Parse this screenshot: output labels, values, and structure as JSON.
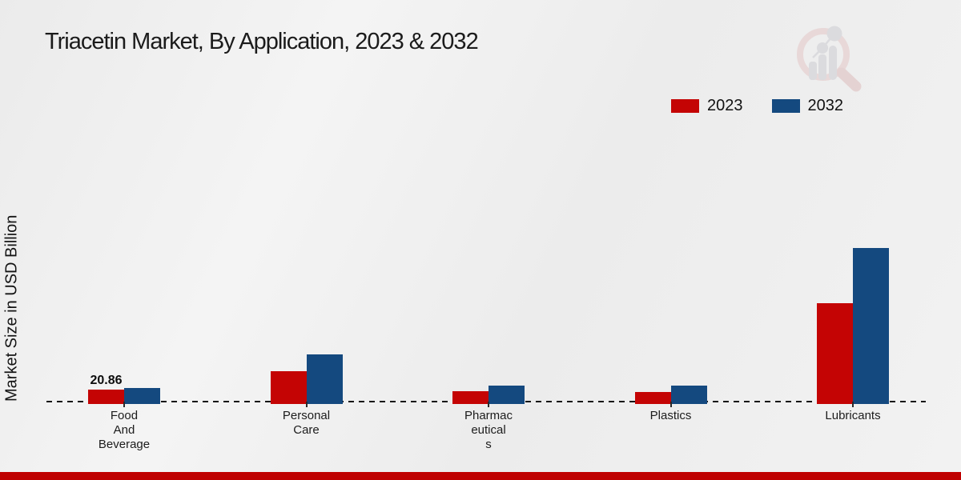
{
  "title": "Triacetin Market, By Application, 2023 & 2032",
  "y_axis_label": "Market Size in USD Billion",
  "legend": {
    "position": "top-right",
    "items": [
      {
        "label": "2023",
        "color": "#c40404"
      },
      {
        "label": "2032",
        "color": "#14497f"
      }
    ]
  },
  "icons": {
    "logo": "magnifier-growth-chart-watermark-logo"
  },
  "colors": {
    "series_2023": "#c40404",
    "series_2032": "#14497f",
    "footer_bar": "#bf0101",
    "background": "#efefef",
    "baseline": "#161616"
  },
  "chart_data": {
    "type": "bar",
    "title": "Triacetin Market, By Application, 2023 & 2032",
    "ylabel": "Market Size in USD Billion",
    "units": "USD Billion",
    "categories": [
      "Food And Beverage",
      "Personal Care",
      "Pharmaceuticals",
      "Plastics",
      "Lubricants"
    ],
    "category_tick_labels": [
      "Food\nAnd\nBeverage",
      "Personal\nCare",
      "Pharmac\neutical\ns",
      "Plastics",
      "Lubricants"
    ],
    "series": [
      {
        "name": "2023",
        "color": "#c40404",
        "values": [
          20.86,
          47.5,
          18.5,
          17.4,
          146.0
        ]
      },
      {
        "name": "2032",
        "color": "#14497f",
        "values": [
          23.2,
          71.8,
          26.6,
          26.6,
          226.0
        ]
      }
    ],
    "value_labels": [
      {
        "series_index": 0,
        "category_index": 0,
        "text": "20.86"
      }
    ],
    "ylim": [
      0,
      250
    ],
    "grid": false,
    "y_axis_ticks": "none",
    "x_axis_style": "dashed-baseline",
    "legend_position": "top-right"
  }
}
